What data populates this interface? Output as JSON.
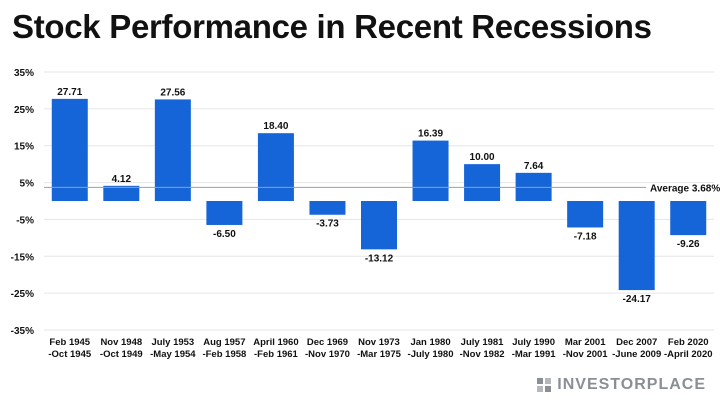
{
  "title": "Stock Performance in Recent Recessions",
  "brand": "INVESTORPLACE",
  "colors": {
    "bar": "#1565d8",
    "average_line": "#9e9e9e",
    "grid": "#e6e6e6",
    "text": "#111111"
  },
  "chart_data": {
    "type": "bar",
    "title": "Stock Performance in Recent Recessions",
    "xlabel": "",
    "ylabel": "",
    "ylim": [
      -35,
      35
    ],
    "yticks": [
      35,
      25,
      15,
      5,
      -5,
      -15,
      -25,
      -35
    ],
    "ytick_labels": [
      "35%",
      "25%",
      "15%",
      "5%",
      "-5%",
      "-15%",
      "-25%",
      "-35%"
    ],
    "grid": true,
    "categories": [
      [
        "Feb 1945",
        "-Oct 1945"
      ],
      [
        "Nov 1948",
        "-Oct 1949"
      ],
      [
        "July 1953",
        "-May 1954"
      ],
      [
        "Aug 1957",
        "-Feb 1958"
      ],
      [
        "April 1960",
        "-Feb 1961"
      ],
      [
        "Dec 1969",
        "-Nov 1970"
      ],
      [
        "Nov 1973",
        "-Mar 1975"
      ],
      [
        "Jan 1980",
        "-July 1980"
      ],
      [
        "July 1981",
        "-Nov 1982"
      ],
      [
        "July 1990",
        "-Mar 1991"
      ],
      [
        "Mar 2001",
        "-Nov 2001"
      ],
      [
        "Dec 2007",
        "-June 2009"
      ],
      [
        "Feb 2020",
        "-April 2020"
      ]
    ],
    "values": [
      27.71,
      4.12,
      27.56,
      -6.5,
      18.4,
      -3.73,
      -13.12,
      16.39,
      10.0,
      7.64,
      -7.18,
      -24.17,
      -9.26
    ],
    "value_labels": [
      "27.71",
      "4.12",
      "27.56",
      "-6.50",
      "18.40",
      "-3.73",
      "-13.12",
      "16.39",
      "10.00",
      "7.64",
      "-7.18",
      "-24.17",
      "-9.26"
    ],
    "average": {
      "value": 3.68,
      "label": "Average 3.68%"
    }
  }
}
